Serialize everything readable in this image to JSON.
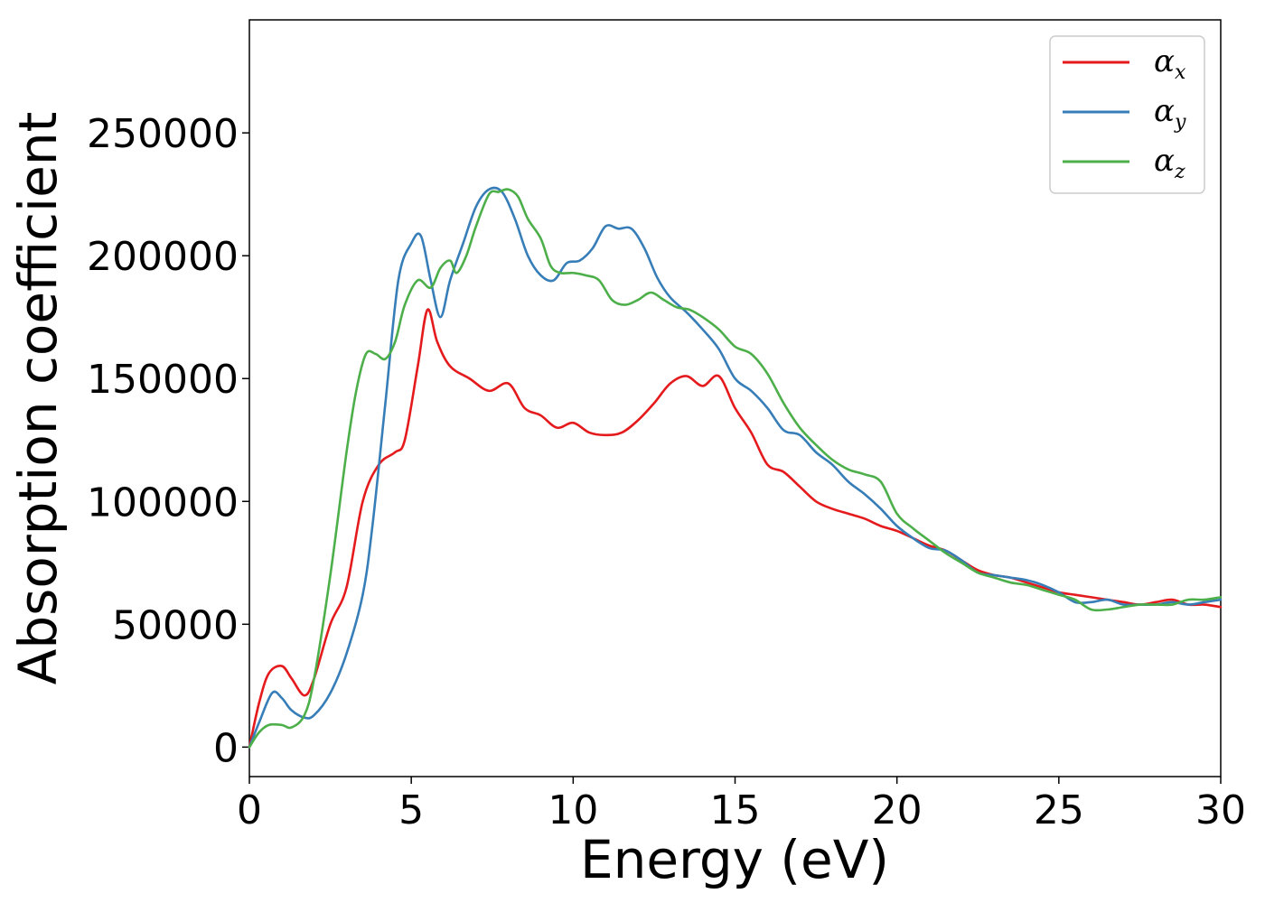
{
  "chart_data": {
    "type": "line",
    "title": "",
    "xlabel": "Energy (eV)",
    "ylabel": "Absorption coefficient",
    "xlim": [
      0,
      30
    ],
    "ylim": [
      -12000,
      296000
    ],
    "xticks": [
      0,
      5,
      10,
      15,
      20,
      25,
      30
    ],
    "yticks": [
      0,
      50000,
      100000,
      150000,
      200000,
      250000
    ],
    "grid": false,
    "legend_position": "top-right",
    "series": [
      {
        "name": "α",
        "subscript": "x",
        "color": "#e41a1c",
        "x": [
          0,
          0.3,
          0.6,
          1.0,
          1.3,
          1.7,
          2.0,
          2.5,
          3.0,
          3.5,
          4.0,
          4.5,
          4.8,
          5.2,
          5.5,
          5.8,
          6.2,
          6.8,
          7.4,
          8.0,
          8.5,
          9.0,
          9.5,
          10.0,
          10.5,
          11.0,
          11.5,
          12.0,
          12.5,
          13.0,
          13.5,
          14.0,
          14.5,
          15.0,
          15.5,
          16.0,
          16.5,
          17.0,
          17.5,
          18.0,
          18.5,
          19.0,
          19.5,
          20.0,
          20.5,
          21.0,
          21.5,
          22.0,
          22.5,
          23.0,
          23.5,
          24.0,
          24.5,
          25.0,
          25.5,
          26.0,
          26.5,
          27.0,
          27.5,
          28.0,
          28.5,
          29.0,
          29.5,
          30.0
        ],
        "values": [
          0,
          18000,
          30000,
          33000,
          28000,
          21000,
          28000,
          50000,
          65000,
          100000,
          115000,
          120000,
          125000,
          155000,
          178000,
          165000,
          155000,
          150000,
          145000,
          148000,
          138000,
          135000,
          130000,
          132000,
          128000,
          127000,
          128000,
          133000,
          140000,
          148000,
          151000,
          147000,
          151000,
          138000,
          128000,
          115000,
          112000,
          106000,
          100000,
          97000,
          95000,
          93000,
          90000,
          88000,
          85000,
          82000,
          80000,
          76000,
          72000,
          70000,
          69000,
          67000,
          65000,
          63000,
          62000,
          61000,
          60000,
          59000,
          58000,
          59000,
          60000,
          58000,
          58000,
          57000
        ]
      },
      {
        "name": "α",
        "subscript": "y",
        "color": "#377eb8",
        "x": [
          0,
          0.3,
          0.7,
          1.0,
          1.3,
          1.7,
          2.0,
          2.5,
          3.0,
          3.5,
          3.8,
          4.2,
          4.6,
          5.0,
          5.3,
          5.6,
          5.9,
          6.2,
          6.6,
          7.0,
          7.4,
          7.8,
          8.2,
          8.6,
          9.0,
          9.4,
          9.8,
          10.2,
          10.6,
          11.0,
          11.4,
          11.8,
          12.2,
          12.6,
          13.0,
          13.5,
          14.0,
          14.5,
          15.0,
          15.5,
          16.0,
          16.5,
          17.0,
          17.5,
          18.0,
          18.5,
          19.0,
          19.5,
          20.0,
          20.5,
          21.0,
          21.5,
          22.0,
          22.5,
          23.0,
          23.5,
          24.0,
          24.5,
          25.0,
          25.5,
          26.0,
          26.5,
          27.0,
          27.5,
          28.0,
          28.5,
          29.0,
          29.5,
          30.0
        ],
        "values": [
          0,
          10000,
          22000,
          20000,
          15000,
          12000,
          13000,
          22000,
          38000,
          62000,
          90000,
          140000,
          190000,
          205000,
          208000,
          190000,
          175000,
          190000,
          205000,
          220000,
          227000,
          226000,
          215000,
          200000,
          192000,
          190000,
          197000,
          198000,
          203000,
          212000,
          211000,
          211000,
          203000,
          191000,
          183000,
          177000,
          170000,
          162000,
          150000,
          145000,
          138000,
          129000,
          127000,
          120000,
          115000,
          108000,
          103000,
          97000,
          90000,
          85000,
          81000,
          80000,
          76000,
          71000,
          70000,
          69000,
          68000,
          66000,
          63000,
          59000,
          59000,
          60000,
          58000,
          58000,
          58000,
          59000,
          58000,
          59000,
          60000
        ]
      },
      {
        "name": "α",
        "subscript": "z",
        "color": "#4daf4a",
        "x": [
          0,
          0.3,
          0.6,
          1.0,
          1.3,
          1.7,
          2.0,
          2.5,
          3.0,
          3.3,
          3.6,
          3.9,
          4.2,
          4.5,
          4.8,
          5.2,
          5.6,
          5.9,
          6.2,
          6.4,
          6.7,
          7.0,
          7.4,
          7.7,
          8.0,
          8.3,
          8.6,
          9.0,
          9.3,
          9.6,
          10.0,
          10.4,
          10.8,
          11.2,
          11.6,
          12.0,
          12.4,
          12.8,
          13.2,
          13.6,
          14.0,
          14.5,
          15.0,
          15.5,
          16.0,
          16.5,
          17.0,
          17.5,
          18.0,
          18.5,
          19.0,
          19.5,
          20.0,
          20.5,
          21.0,
          21.5,
          22.0,
          22.5,
          23.0,
          23.5,
          24.0,
          24.5,
          25.0,
          25.5,
          26.0,
          26.5,
          27.0,
          27.5,
          28.0,
          28.5,
          29.0,
          29.5,
          30.0
        ],
        "values": [
          0,
          6000,
          9000,
          9000,
          8000,
          13000,
          28000,
          70000,
          120000,
          145000,
          160000,
          160000,
          158000,
          165000,
          180000,
          190000,
          187000,
          195000,
          198000,
          193000,
          200000,
          212000,
          225000,
          226000,
          227000,
          224000,
          215000,
          207000,
          196000,
          193000,
          193000,
          192000,
          190000,
          182000,
          180000,
          182000,
          185000,
          182000,
          179000,
          178000,
          175000,
          170000,
          163000,
          160000,
          152000,
          140000,
          130000,
          123000,
          117000,
          113000,
          111000,
          108000,
          95000,
          89000,
          84000,
          79000,
          75000,
          71000,
          69000,
          67000,
          66000,
          64000,
          62000,
          60000,
          56000,
          56000,
          57000,
          58000,
          58000,
          58000,
          60000,
          60000,
          61000
        ]
      }
    ]
  }
}
